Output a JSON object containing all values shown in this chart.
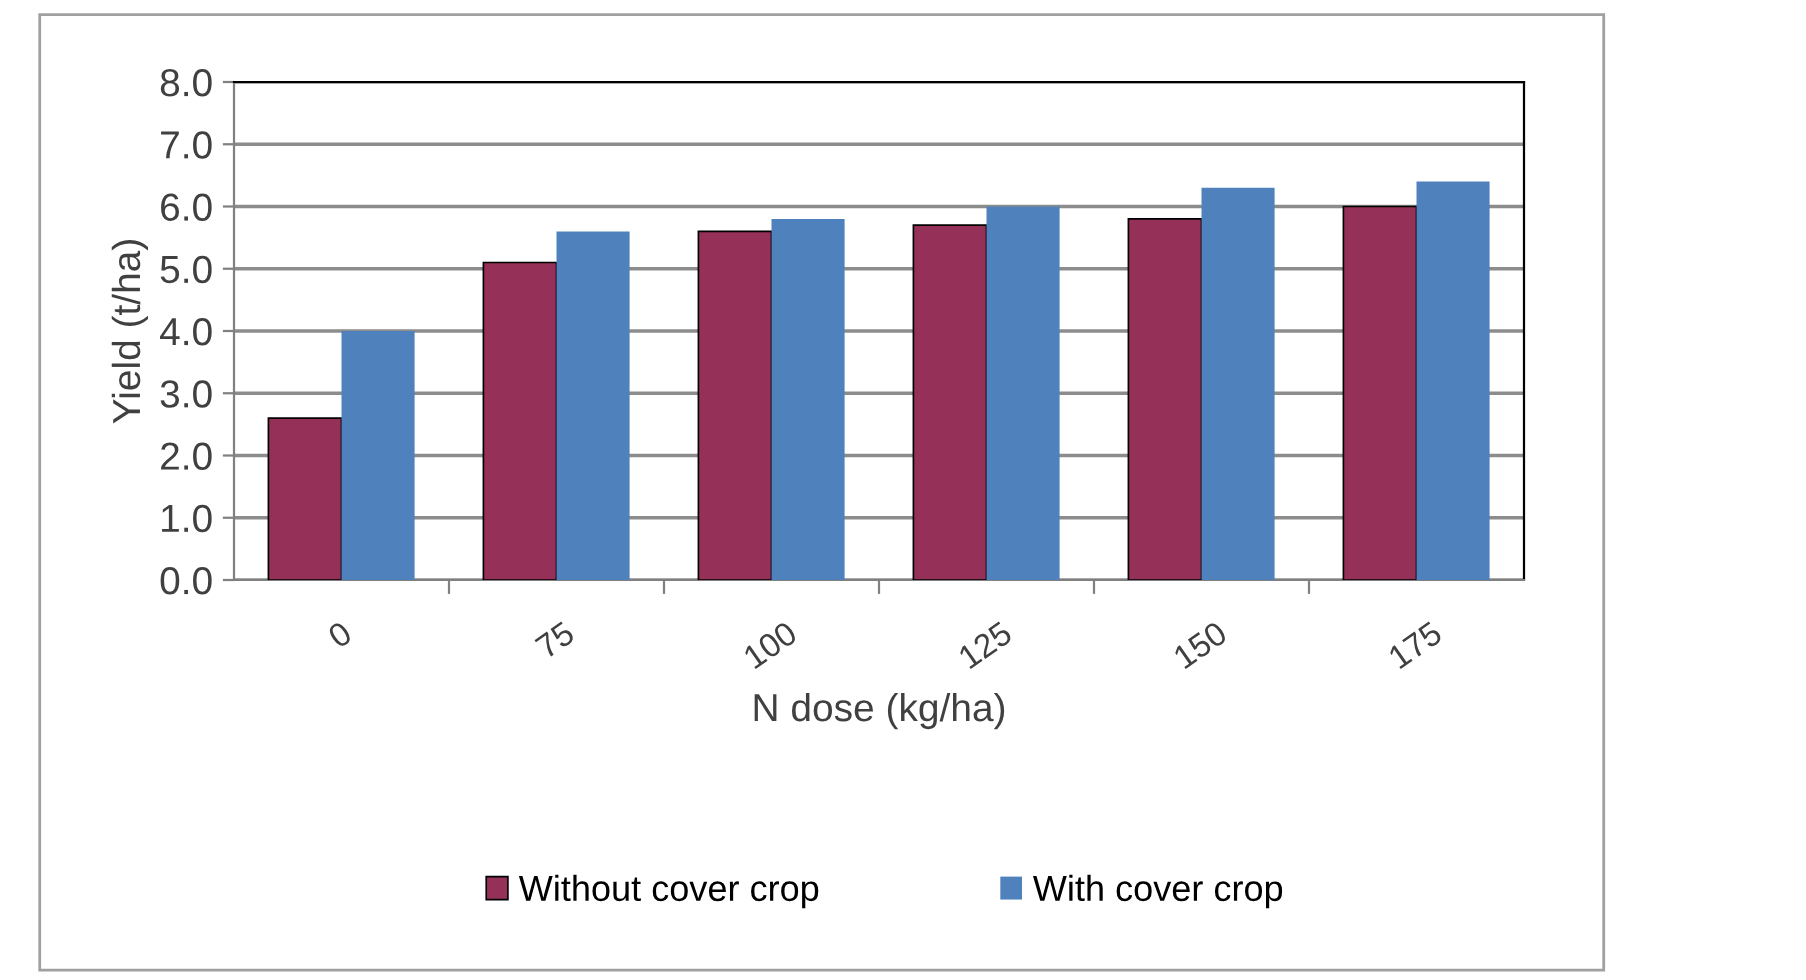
{
  "chart_data": {
    "type": "bar",
    "xlabel": "N dose (kg/ha)",
    "ylabel": "Yield (t/ha)",
    "categories": [
      "0",
      "75",
      "100",
      "125",
      "150",
      "175"
    ],
    "series": [
      {
        "name": "Without cover crop",
        "color": "#953158",
        "values": [
          2.6,
          5.1,
          5.6,
          5.7,
          5.8,
          6.0
        ]
      },
      {
        "name": "With cover crop",
        "color": "#4f81bd",
        "values": [
          4.0,
          5.6,
          5.8,
          6.0,
          6.3,
          6.4
        ]
      }
    ],
    "ylim": [
      0,
      8
    ],
    "yticks": [
      {
        "value": 0,
        "label": "0.0"
      },
      {
        "value": 1,
        "label": "1.0"
      },
      {
        "value": 2,
        "label": "2.0"
      },
      {
        "value": 3,
        "label": "3.0"
      },
      {
        "value": 4,
        "label": "4.0"
      },
      {
        "value": 5,
        "label": "5.0"
      },
      {
        "value": 6,
        "label": "6.0"
      },
      {
        "value": 7,
        "label": "7.0"
      },
      {
        "value": 8,
        "label": "8.0"
      }
    ],
    "grid": "y",
    "legend": "bottom"
  }
}
